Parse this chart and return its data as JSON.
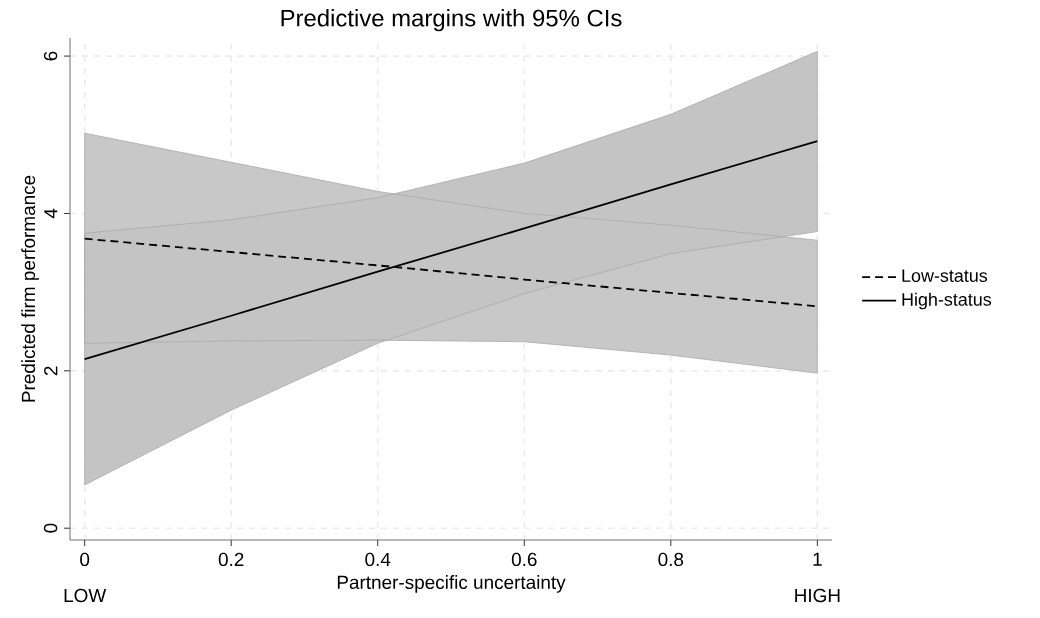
{
  "chart_data": {
    "type": "line",
    "title": "Predictive margins with 95% CIs",
    "xlabel": "Partner-specific uncertainty",
    "ylabel": "Predicted firm performance",
    "x": [
      0,
      0.2,
      0.4,
      0.6,
      0.8,
      1
    ],
    "series": [
      {
        "name": "Low-status",
        "color": "#000000",
        "line_style": "dashed",
        "values": [
          3.68,
          3.51,
          3.34,
          3.16,
          2.99,
          2.82
        ],
        "lower": [
          2.35,
          2.38,
          2.39,
          2.37,
          2.2,
          1.97
        ],
        "upper": [
          5.02,
          4.65,
          4.28,
          4.0,
          3.85,
          3.66
        ]
      },
      {
        "name": "High-status",
        "color": "#000000",
        "line_style": "solid",
        "values": [
          2.15,
          2.7,
          3.26,
          3.81,
          4.37,
          4.92
        ],
        "lower": [
          0.55,
          1.5,
          2.35,
          2.98,
          3.49,
          3.77
        ],
        "upper": [
          3.75,
          3.92,
          4.2,
          4.64,
          5.26,
          6.06
        ]
      }
    ],
    "xlim": [
      -0.02,
      1.02
    ],
    "ylim": [
      -0.15,
      6.23
    ],
    "xticks": [
      0,
      0.2,
      0.4,
      0.6,
      0.8,
      1
    ],
    "yticks": [
      0,
      2,
      4,
      6
    ],
    "grid": true,
    "legend": "right",
    "marker": "none",
    "annotations": [
      "LOW",
      "HIGH"
    ]
  }
}
